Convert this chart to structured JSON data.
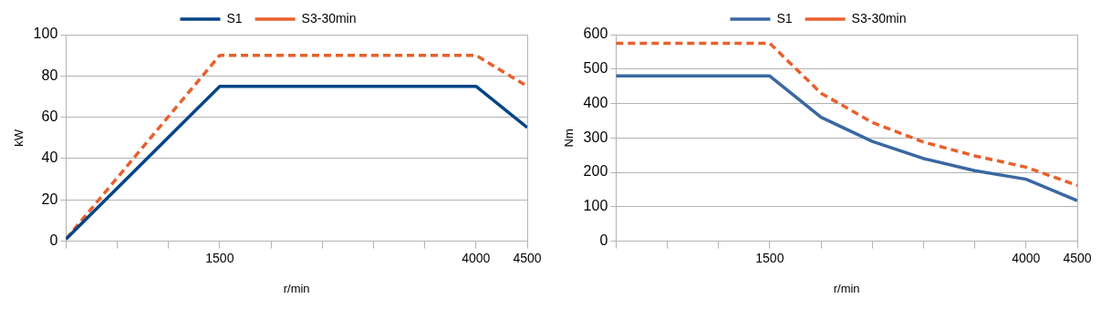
{
  "chart_data": [
    {
      "type": "line",
      "xlabel": "r/min",
      "ylabel": "kW",
      "x": [
        0,
        1500,
        4000,
        4500
      ],
      "xlim": [
        0,
        4500
      ],
      "xticks": [
        {
          "value": 0,
          "label": null
        },
        {
          "value": 500,
          "label": null
        },
        {
          "value": 1000,
          "label": null
        },
        1500,
        {
          "value": 2000,
          "label": null
        },
        {
          "value": 2500,
          "label": null
        },
        {
          "value": 3000,
          "label": null
        },
        {
          "value": 3500,
          "label": null
        },
        4000,
        4500
      ],
      "ylim": [
        0,
        100
      ],
      "yticks": [
        0,
        20,
        40,
        60,
        80,
        100
      ],
      "grid": "y",
      "legend": "top",
      "marker": "none",
      "series": [
        {
          "name": "S1",
          "color": "#004586",
          "line_style": "solid",
          "values": [
            1,
            75,
            75,
            55
          ]
        },
        {
          "name": "S3-30min",
          "color": "#e8602c",
          "line_style": "dashed",
          "values": [
            1,
            90,
            90,
            75
          ]
        }
      ]
    },
    {
      "type": "line",
      "xlabel": "r/min",
      "ylabel": "Nm",
      "x": [
        0,
        1500,
        2000,
        2500,
        3000,
        3500,
        4000,
        4500
      ],
      "xlim": [
        0,
        4500
      ],
      "xticks": [
        {
          "value": 0,
          "label": null
        },
        {
          "value": 500,
          "label": null
        },
        {
          "value": 1000,
          "label": null
        },
        1500,
        {
          "value": 2000,
          "label": null
        },
        {
          "value": 2500,
          "label": null
        },
        {
          "value": 3000,
          "label": null
        },
        {
          "value": 3500,
          "label": null
        },
        4000,
        4500
      ],
      "ylim": [
        0,
        600
      ],
      "yticks": [
        0,
        100,
        200,
        300,
        400,
        500,
        600
      ],
      "grid": "y",
      "legend": "top",
      "marker": "none",
      "series": [
        {
          "name": "S1",
          "color": "#3a68a2",
          "line_style": "solid",
          "values": [
            480,
            480,
            360,
            290,
            240,
            205,
            180,
            118
          ]
        },
        {
          "name": "S3-30min",
          "color": "#e8602c",
          "line_style": "dashed",
          "values": [
            575,
            575,
            430,
            345,
            288,
            248,
            215,
            162
          ]
        }
      ]
    }
  ]
}
